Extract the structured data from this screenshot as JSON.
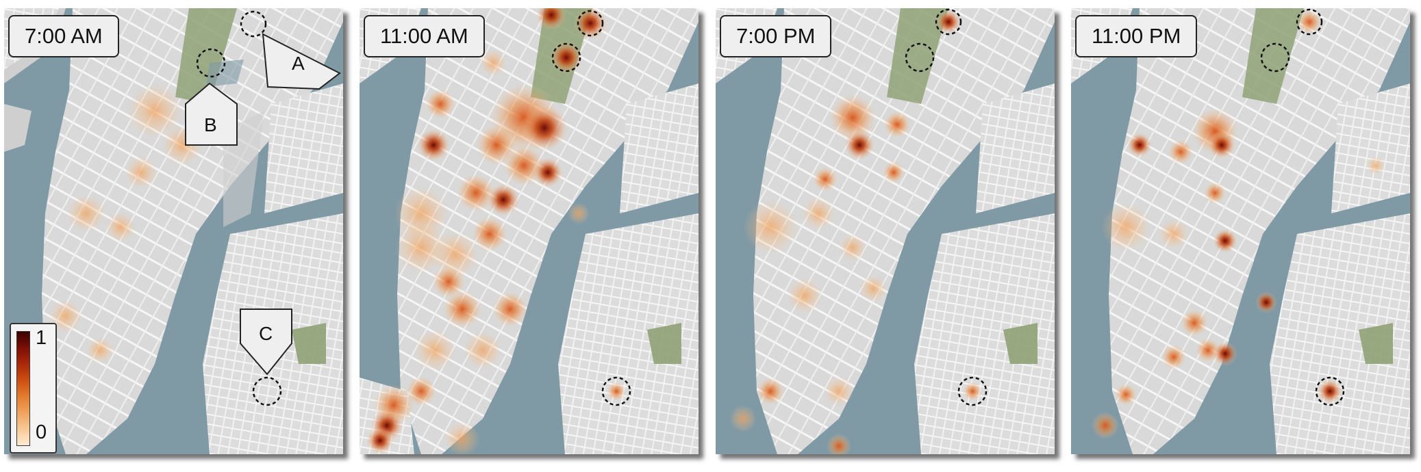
{
  "panels": [
    {
      "time": "7:00 AM"
    },
    {
      "time": "11:00 AM"
    },
    {
      "time": "7:00 PM"
    },
    {
      "time": "11:00 PM"
    }
  ],
  "callouts": {
    "a": "A",
    "b": "B",
    "c": "C"
  },
  "legend": {
    "max_label": "1",
    "min_label": "0"
  },
  "colors": {
    "water": "#7f99a5",
    "land": "#dadada",
    "park": "#8fa277",
    "street": "#f4f4f4",
    "hotspot_low": "#f7c590",
    "hotspot_high": "#7d0d06"
  }
}
